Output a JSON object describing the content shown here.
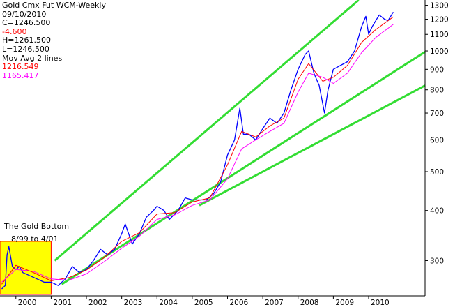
{
  "header": {
    "title": "Gold Cmx Fut WCM-Weekly",
    "date": "09/10/2010",
    "close": "C=1246.500",
    "change": "-4.600",
    "high": "H=1261.500",
    "low": "L=1246.500",
    "indicator": "Mov Avg 2 lines",
    "ma1_value": "1216.549",
    "ma2_value": "1165.417"
  },
  "annotation": {
    "line1": "The Gold Bottom",
    "line2": "8/99 to 4/01"
  },
  "colors": {
    "price": "#0000ff",
    "ma_fast": "#ff0000",
    "ma_slow": "#ff00ff",
    "trendline": "#33dd33",
    "highlight": "#ffff00",
    "highlight_border": "#ff0000",
    "change_text": "#ff0000"
  },
  "chart_data": {
    "type": "line",
    "title": "Gold Cmx Fut WCM-Weekly",
    "xlabel": "",
    "ylabel": "",
    "y_scale": "log",
    "xlim": [
      1999.55,
      2011.6
    ],
    "ylim": [
      245,
      1340
    ],
    "x_ticks": [
      "2000",
      "2001",
      "2002",
      "2003",
      "2004",
      "2005",
      "2006",
      "2007",
      "2008",
      "2009",
      "2010"
    ],
    "y_ticks": [
      300,
      400,
      500,
      600,
      700,
      800,
      900,
      1000,
      1100,
      1200,
      1300
    ],
    "grid": false,
    "series": [
      {
        "name": "Price",
        "x": [
          1999.6,
          1999.7,
          1999.75,
          1999.8,
          1999.9,
          2000.0,
          2000.1,
          2000.2,
          2000.4,
          2000.6,
          2000.8,
          2001.0,
          2001.2,
          2001.4,
          2001.6,
          2001.8,
          2002.0,
          2002.2,
          2002.4,
          2002.6,
          2002.8,
          2003.0,
          2003.1,
          2003.3,
          2003.5,
          2003.7,
          2003.9,
          2004.0,
          2004.2,
          2004.35,
          2004.6,
          2004.8,
          2005.0,
          2005.2,
          2005.4,
          2005.6,
          2005.8,
          2006.0,
          2006.2,
          2006.35,
          2006.45,
          2006.6,
          2006.8,
          2007.0,
          2007.2,
          2007.4,
          2007.6,
          2007.8,
          2008.0,
          2008.2,
          2008.3,
          2008.45,
          2008.6,
          2008.75,
          2008.85,
          2009.0,
          2009.2,
          2009.4,
          2009.6,
          2009.8,
          2009.92,
          2010.0,
          2010.1,
          2010.3,
          2010.45,
          2010.55,
          2010.7
        ],
        "values": [
          255,
          260,
          310,
          325,
          290,
          285,
          290,
          280,
          275,
          270,
          265,
          265,
          260,
          270,
          290,
          280,
          285,
          300,
          320,
          310,
          320,
          350,
          370,
          330,
          350,
          385,
          400,
          410,
          400,
          380,
          400,
          430,
          425,
          425,
          425,
          440,
          470,
          550,
          600,
          720,
          620,
          620,
          600,
          640,
          680,
          660,
          700,
          800,
          900,
          980,
          1000,
          880,
          820,
          700,
          800,
          900,
          920,
          940,
          1000,
          1150,
          1220,
          1100,
          1150,
          1230,
          1200,
          1190,
          1250
        ]
      },
      {
        "name": "MA fast",
        "x": [
          1999.6,
          2000.0,
          2000.5,
          2001.0,
          2001.5,
          2002.0,
          2002.5,
          2003.0,
          2003.5,
          2004.0,
          2004.5,
          2005.0,
          2005.5,
          2006.0,
          2006.4,
          2006.8,
          2007.2,
          2007.6,
          2008.0,
          2008.3,
          2008.7,
          2009.0,
          2009.4,
          2009.8,
          2010.2,
          2010.7
        ],
        "values": [
          262,
          292,
          280,
          267,
          272,
          284,
          305,
          335,
          352,
          392,
          395,
          420,
          430,
          520,
          630,
          610,
          650,
          680,
          850,
          930,
          840,
          860,
          920,
          1050,
          1130,
          1216
        ]
      },
      {
        "name": "MA slow",
        "x": [
          1999.6,
          2000.0,
          2000.5,
          2001.0,
          2001.5,
          2002.0,
          2002.5,
          2003.0,
          2003.5,
          2004.0,
          2004.5,
          2005.0,
          2005.5,
          2006.0,
          2006.4,
          2006.8,
          2007.2,
          2007.6,
          2008.0,
          2008.3,
          2008.7,
          2009.0,
          2009.4,
          2009.8,
          2010.2,
          2010.7
        ],
        "values": [
          265,
          285,
          282,
          270,
          268,
          278,
          298,
          322,
          345,
          380,
          390,
          412,
          425,
          480,
          570,
          600,
          630,
          660,
          790,
          880,
          860,
          830,
          880,
          990,
          1080,
          1165
        ]
      },
      {
        "name": "Trendline upper",
        "x": [
          2001.1,
          2009.72
        ],
        "values": [
          300,
          1340
        ]
      },
      {
        "name": "Trendline middle",
        "x": [
          2001.3,
          2011.6
        ],
        "values": [
          262,
          995
        ]
      },
      {
        "name": "Trendline lower",
        "x": [
          2005.2,
          2011.6
        ],
        "values": [
          412,
          820
        ]
      }
    ],
    "highlight_region": {
      "x": [
        1999.55,
        2001.0
      ],
      "y": [
        247,
        335
      ]
    }
  }
}
